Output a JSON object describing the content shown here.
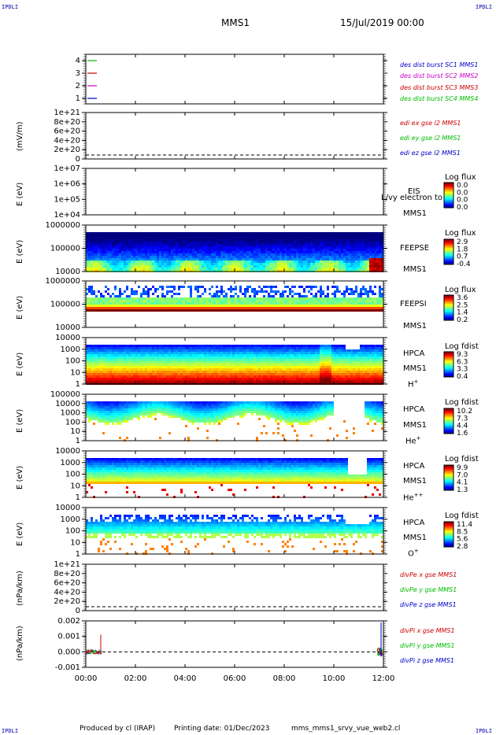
{
  "corner_label": "IPDLI",
  "header": {
    "spacecraft": "MMS1",
    "date": "15/Jul/2019 00:00"
  },
  "footer": {
    "produced_by": "Produced by cl (IRAP)",
    "printing_date": "Printing date: 01/Dec/2023",
    "script": "mms_mms1_srvy_vue_web2.cl"
  },
  "chart_data": {
    "type": "stacked-panels",
    "xaxis": {
      "ticks": [
        "00:00",
        "02:00",
        "04:00",
        "06:00",
        "08:00",
        "10:00",
        "12:00"
      ],
      "range_hours": [
        0,
        12
      ]
    },
    "panels": [
      {
        "id": "burst",
        "type": "line",
        "yticks": [
          "4",
          "3",
          "2",
          "1"
        ],
        "series": [
          {
            "name": "des dist burst SC1 MMS1",
            "color": "#0000cc",
            "value": 1
          },
          {
            "name": "des dist burst SC2 MMS2",
            "color": "#cc00cc",
            "value": 2
          },
          {
            "name": "des dist burst SC3 MMS3",
            "color": "#cc0000",
            "value": 3
          },
          {
            "name": "des dist burst SC4 MMS4",
            "color": "#00bb00",
            "value": 4
          }
        ]
      },
      {
        "id": "edi",
        "type": "line",
        "ylabel": "(mV/m)",
        "yticks": [
          "1e+21",
          "8e+20",
          "6e+20",
          "4e+20",
          "2e+20",
          "0"
        ],
        "series": [
          {
            "name": "edi ex gse l2 MMS1",
            "color": "#cc0000"
          },
          {
            "name": "edi ey gse l2 MMS1",
            "color": "#00bb00"
          },
          {
            "name": "edi ez gse l2 MMS1",
            "color": "#0000cc"
          }
        ]
      },
      {
        "id": "eis",
        "type": "heatmap",
        "ylabel": "E (eV)",
        "yticks": [
          "1e+07",
          "1e+06",
          "1e+05",
          "1e+04"
        ],
        "instrument": [
          "EIS",
          "MMS1"
        ],
        "overlay_label": "L/vy electron to",
        "colorbar": {
          "title": "Log flux",
          "ticks": [
            "0.0",
            "0.0",
            "0.0",
            "0.0"
          ]
        }
      },
      {
        "id": "feepse",
        "type": "heatmap",
        "ylabel": "E (eV)",
        "yticks": [
          "1000000",
          "100000",
          "10000"
        ],
        "instrument": [
          "FEEPSE",
          "MMS1"
        ],
        "colorbar": {
          "title": "Log flux",
          "ticks": [
            "2.9",
            "1.8",
            "0.7",
            "-0.4"
          ]
        }
      },
      {
        "id": "feepsi",
        "type": "heatmap",
        "ylabel": "E (eV)",
        "yticks": [
          "1000000",
          "100000",
          "10000"
        ],
        "instrument": [
          "FEEPSI",
          "MMS1"
        ],
        "colorbar": {
          "title": "Log flux",
          "ticks": [
            "3.6",
            "2.5",
            "1.4",
            "0.2"
          ]
        }
      },
      {
        "id": "hpca_h",
        "type": "heatmap",
        "ylabel": "E (eV)",
        "yticks": [
          "10000",
          "1000",
          "100",
          "10",
          "1"
        ],
        "instrument": [
          "HPCA",
          "MMS1"
        ],
        "species": "H",
        "charge": "+",
        "colorbar": {
          "title": "Log fdist",
          "ticks": [
            "9.3",
            "6.3",
            "3.3",
            "0.4"
          ]
        }
      },
      {
        "id": "hpca_he",
        "type": "heatmap",
        "ylabel": "E (eV)",
        "yticks": [
          "100000",
          "10000",
          "1000",
          "100",
          "10",
          "1"
        ],
        "instrument": [
          "HPCA",
          "MMS1"
        ],
        "species": "He",
        "charge": "+",
        "colorbar": {
          "title": "Log fdist",
          "ticks": [
            "10.2",
            "7.3",
            "4.4",
            "1.6"
          ]
        }
      },
      {
        "id": "hpca_he2",
        "type": "heatmap",
        "ylabel": "E (eV)",
        "yticks": [
          "10000",
          "1000",
          "100",
          "10",
          "1"
        ],
        "instrument": [
          "HPCA",
          "MMS1"
        ],
        "species": "He",
        "charge": "++",
        "colorbar": {
          "title": "Log fdist",
          "ticks": [
            "9.9",
            "7.0",
            "4.1",
            "1.3"
          ]
        }
      },
      {
        "id": "hpca_o",
        "type": "heatmap",
        "ylabel": "E (eV)",
        "yticks": [
          "10000",
          "1000",
          "100",
          "10",
          "1"
        ],
        "instrument": [
          "HPCA",
          "MMS1"
        ],
        "species": "O",
        "charge": "+",
        "colorbar": {
          "title": "Log fdist",
          "ticks": [
            "11.4",
            "8.5",
            "5.6",
            "2.8"
          ]
        }
      },
      {
        "id": "divpe",
        "type": "line",
        "ylabel": "(nPa/km)",
        "yticks": [
          "1e+21",
          "8e+20",
          "6e+20",
          "4e+20",
          "2e+20",
          "0"
        ],
        "series": [
          {
            "name": "divPe x gse MMS1",
            "color": "#cc0000"
          },
          {
            "name": "divPe y gse MMS1",
            "color": "#00bb00"
          },
          {
            "name": "divPe z gse MMS1",
            "color": "#0000cc"
          }
        ]
      },
      {
        "id": "divpi",
        "type": "line",
        "ylabel": "(nPa/km)",
        "yticks": [
          "0.002",
          "0.001",
          "0.000",
          "-0.001"
        ],
        "series": [
          {
            "name": "divPi x gse MMS1",
            "color": "#cc0000"
          },
          {
            "name": "divPi y gse MMS1",
            "color": "#00bb00"
          },
          {
            "name": "divPi z gse MMS1",
            "color": "#0000cc"
          }
        ]
      }
    ]
  }
}
